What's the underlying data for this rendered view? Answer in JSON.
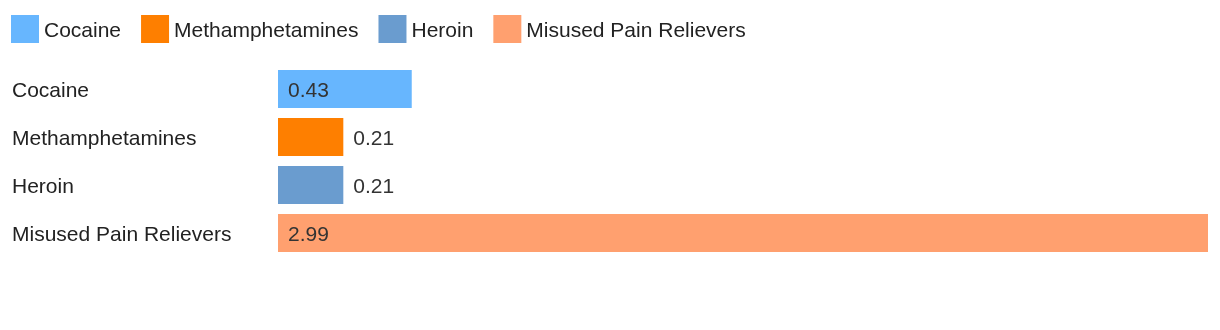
{
  "chart_data": {
    "type": "bar",
    "orientation": "horizontal",
    "stacked": true,
    "categories": [
      "Cocaine",
      "Methamphetamines",
      "Heroin",
      "Misused Pain Relievers"
    ],
    "series": [
      {
        "name": "Cocaine",
        "color": "#67b6fe",
        "values": [
          0.43,
          null,
          null,
          null
        ]
      },
      {
        "name": "Methamphetamines",
        "color": "#fe7f00",
        "values": [
          null,
          0.21,
          null,
          null
        ]
      },
      {
        "name": "Heroin",
        "color": "#6a9ccf",
        "values": [
          null,
          null,
          0.21,
          null
        ]
      },
      {
        "name": "Misused Pain Relievers",
        "color": "#ffa06f",
        "values": [
          null,
          null,
          null,
          2.99
        ]
      }
    ],
    "data_labels": true,
    "legend": "top left"
  }
}
